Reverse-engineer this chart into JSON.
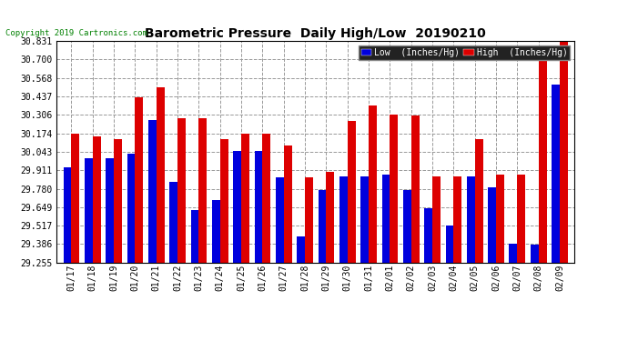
{
  "title": "Barometric Pressure  Daily High/Low  20190210",
  "copyright": "Copyright 2019 Cartronics.com",
  "legend_low": "Low  (Inches/Hg)",
  "legend_high": "High  (Inches/Hg)",
  "low_color": "#0000dd",
  "high_color": "#dd0000",
  "dates": [
    "01/17",
    "01/18",
    "01/19",
    "01/20",
    "01/21",
    "01/22",
    "01/23",
    "01/24",
    "01/25",
    "01/26",
    "01/27",
    "01/28",
    "01/29",
    "01/30",
    "01/31",
    "02/01",
    "02/02",
    "02/03",
    "02/04",
    "02/05",
    "02/06",
    "02/07",
    "02/08",
    "02/09"
  ],
  "low_values": [
    29.93,
    30.0,
    30.0,
    30.03,
    30.27,
    29.83,
    29.63,
    29.7,
    30.05,
    30.05,
    29.86,
    29.44,
    29.77,
    29.87,
    29.87,
    29.88,
    29.77,
    29.64,
    29.52,
    29.87,
    29.79,
    29.39,
    29.38,
    30.52
  ],
  "high_values": [
    30.17,
    30.15,
    30.13,
    30.43,
    30.5,
    30.28,
    30.28,
    30.13,
    30.17,
    30.17,
    30.09,
    29.86,
    29.9,
    30.26,
    30.37,
    30.31,
    30.3,
    29.87,
    29.87,
    30.13,
    29.88,
    29.88,
    30.73,
    30.83
  ],
  "ylim_min": 29.255,
  "ylim_max": 30.831,
  "yticks": [
    29.255,
    29.386,
    29.517,
    29.649,
    29.78,
    29.911,
    30.043,
    30.174,
    30.306,
    30.437,
    30.568,
    30.7,
    30.831
  ],
  "bg_color": "#ffffff",
  "grid_color": "#999999",
  "bar_width": 0.38
}
